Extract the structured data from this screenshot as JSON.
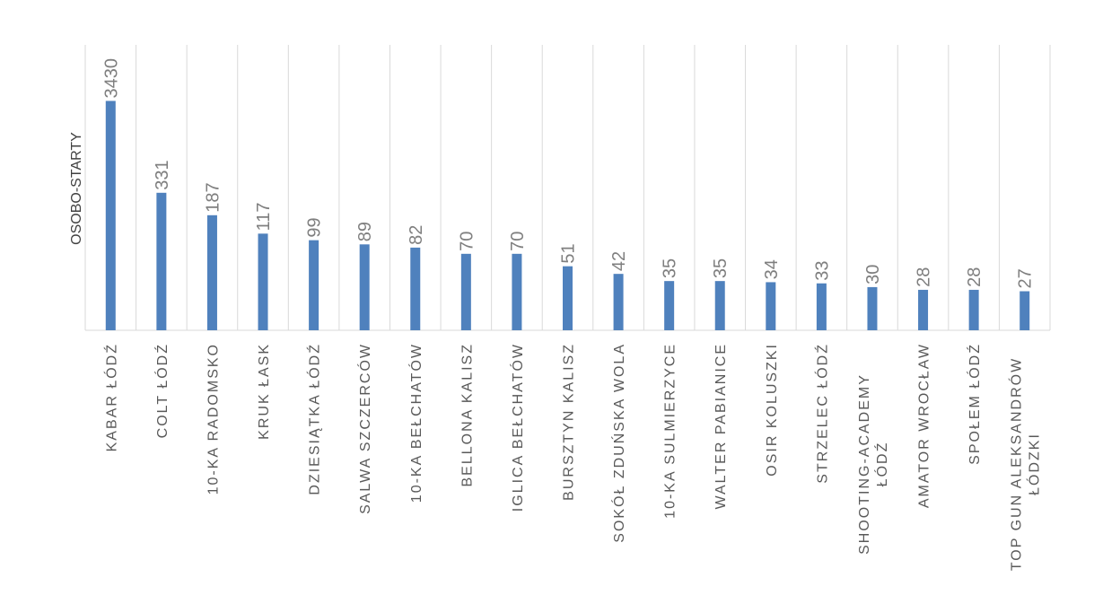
{
  "chart_data": {
    "type": "bar",
    "title": "",
    "xlabel": "",
    "ylabel": "OSOBO-STARTY",
    "categories": [
      "KABAR ŁÓDŹ",
      "COLT ŁÓDŹ",
      "10-KA RADOMSKO",
      "KRUK ŁASK",
      "DZIESIĄTKA ŁÓDŹ",
      "SALWA SZCZERCÓW",
      "10-KA BEŁCHATÓW",
      "BELLONA KALISZ",
      "IGLICA BEŁCHATÓW",
      "BURSZTYN KALISZ",
      "SOKÓŁ ZDUŃSKA WOLA",
      "10-KA SULMIERZYCE",
      "WALTER PABIANICE",
      "OSIR KOLUSZKI",
      "STRZELEC ŁÓDŹ",
      "SHOOTING-ACADEMY ŁÓDŹ",
      "AMATOR WROCŁAW",
      "SPOŁEM ŁÓDŹ",
      "TOP GUN ALEKSANDRÓW ŁÓDZKI"
    ],
    "category_lines": [
      [
        "KABAR ŁÓDŹ"
      ],
      [
        "COLT ŁÓDŹ"
      ],
      [
        "10-KA RADOMSKO"
      ],
      [
        "KRUK ŁASK"
      ],
      [
        "DZIESIĄTKA ŁÓDŹ"
      ],
      [
        "SALWA SZCZERCÓW"
      ],
      [
        "10-KA BEŁCHATÓW"
      ],
      [
        "BELLONA KALISZ"
      ],
      [
        "IGLICA BEŁCHATÓW"
      ],
      [
        "BURSZTYN KALISZ"
      ],
      [
        "SOKÓŁ ZDUŃSKA WOLA"
      ],
      [
        "10-KA SULMIERZYCE"
      ],
      [
        "WALTER PABIANICE"
      ],
      [
        "OSIR KOLUSZKI"
      ],
      [
        "STRZELEC ŁÓDŹ"
      ],
      [
        "SHOOTING-ACADEMY",
        "ŁÓDŹ"
      ],
      [
        "AMATOR WROCŁAW"
      ],
      [
        "SPOŁEM ŁÓDŹ"
      ],
      [
        "TOP GUN ALEKSANDRÓW",
        "ŁÓDZKI"
      ]
    ],
    "values": [
      3430,
      331,
      187,
      117,
      99,
      89,
      82,
      70,
      70,
      51,
      42,
      35,
      35,
      34,
      33,
      30,
      28,
      28,
      27
    ],
    "scale": "log",
    "ylim": [
      10,
      4000
    ],
    "grid": "vertical category separators",
    "legend": "none",
    "bar_color": "#4f81bd",
    "grid_color": "#d9d9d9",
    "label_color": "#7f7f7f"
  }
}
